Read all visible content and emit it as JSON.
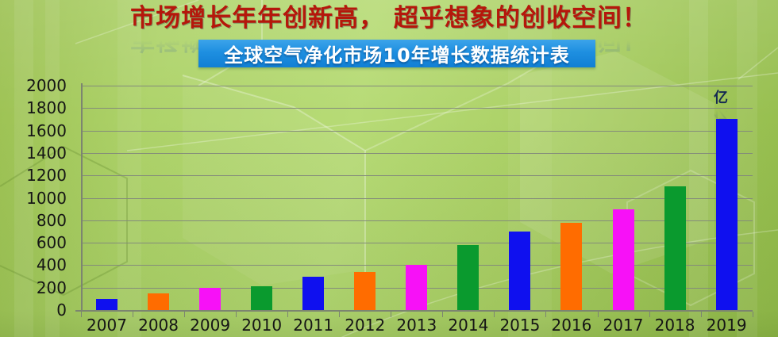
{
  "header": {
    "title": "市场增长年年创新高， 超乎想象的创收空间！",
    "subtitle": "全球空气净化市场10年增长数据统计表"
  },
  "chart_data": {
    "type": "bar",
    "title": "全球空气净化市场10年增长数据统计表",
    "unit": "亿",
    "categories": [
      "2007",
      "2008",
      "2009",
      "2010",
      "2011",
      "2012",
      "2013",
      "2014",
      "2015",
      "2016",
      "2017",
      "2018",
      "2019"
    ],
    "values": [
      100,
      150,
      200,
      210,
      300,
      340,
      400,
      580,
      700,
      780,
      900,
      1100,
      1700
    ],
    "bar_color_cycle": [
      "#0f10ef",
      "#ff6c00",
      "#f711f7",
      "#0a9a2e"
    ],
    "ylim": [
      0,
      2000
    ],
    "ytick_step": 200,
    "yticks": [
      0,
      200,
      400,
      600,
      800,
      1000,
      1200,
      1400,
      1600,
      1800,
      2000
    ],
    "grid": true,
    "legend_position": "none"
  },
  "colors": {
    "title_red": "#b5170b",
    "banner_blue": "#1e8fe0",
    "grid_gray": "#82887b",
    "axis_gray": "#7c8570",
    "label_dark": "#151515",
    "unit_navy": "#152a52",
    "background_green": "#aed36a"
  }
}
